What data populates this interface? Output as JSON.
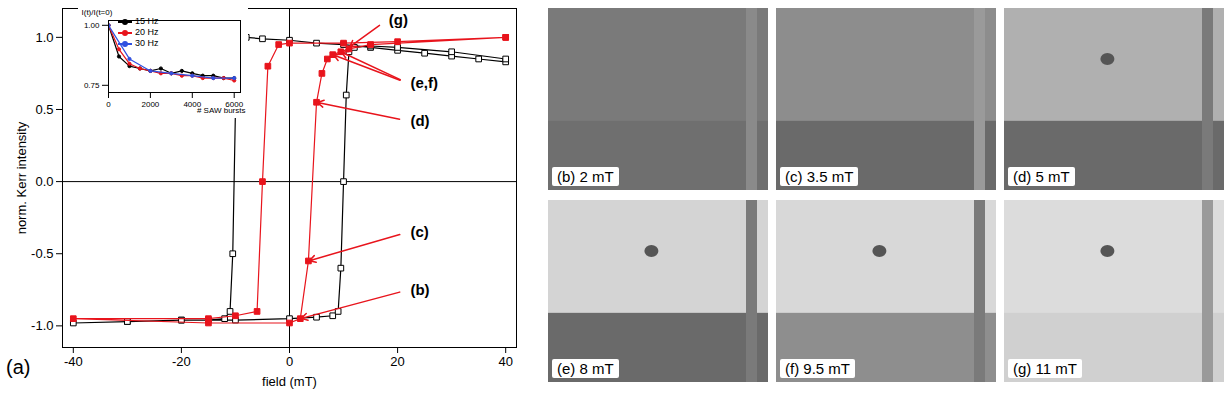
{
  "chart_data": [
    {
      "type": "line",
      "label": "(a)",
      "xlabel": "field (mT)",
      "ylabel": "norm. Kerr intensity",
      "xlim": [
        -42,
        42
      ],
      "ylim": [
        -1.15,
        1.2
      ],
      "xticks": [
        -40,
        -20,
        0,
        20,
        40
      ],
      "yticks": [
        {
          "value": -1,
          "label": "-1.0"
        },
        {
          "value": -0.5,
          "label": "-0.5"
        },
        {
          "value": 0,
          "label": "0.0"
        },
        {
          "value": 0.5,
          "label": "0.5"
        },
        {
          "value": 1,
          "label": "1.0"
        }
      ],
      "hlines": [
        0
      ],
      "vlines": [
        0
      ],
      "series": [
        {
          "color": "#000000",
          "marker": "open_square",
          "x": [
            40,
            35,
            30,
            25,
            20,
            15,
            10,
            5,
            0,
            -5,
            -8,
            -9,
            -9.5,
            -10,
            -10.5,
            -11,
            -12,
            -15,
            -20,
            -30,
            -40,
            -30,
            -20,
            -10,
            0,
            5,
            8,
            9,
            9.5,
            10,
            10.5,
            11,
            12,
            15,
            20,
            30,
            40
          ],
          "values": [
            0.83,
            0.85,
            0.87,
            0.89,
            0.91,
            0.93,
            0.95,
            0.96,
            0.98,
            0.99,
            1.0,
            0.98,
            0.9,
            0.5,
            -0.5,
            -0.9,
            -0.95,
            -0.96,
            -0.96,
            -0.97,
            -0.98,
            -0.97,
            -0.96,
            -0.96,
            -0.95,
            -0.94,
            -0.93,
            -0.9,
            -0.6,
            0.0,
            0.6,
            0.9,
            0.93,
            0.94,
            0.93,
            0.9,
            0.85
          ]
        },
        {
          "color": "#e8141c",
          "marker": "square",
          "x": [
            40,
            20,
            10,
            0,
            -2,
            -4,
            -5,
            -6,
            -10,
            -15,
            -40,
            -15,
            0,
            2,
            3.5,
            5,
            6,
            7,
            8,
            9.5,
            11,
            15,
            40
          ],
          "values": [
            1.0,
            0.97,
            0.96,
            0.96,
            0.95,
            0.8,
            0.0,
            -0.9,
            -0.93,
            -0.95,
            -0.95,
            -0.98,
            -0.98,
            -0.95,
            -0.55,
            0.55,
            0.75,
            0.85,
            0.88,
            0.9,
            0.92,
            0.95,
            1.0
          ]
        }
      ],
      "annotations": [
        {
          "text": "(g)",
          "x": 18,
          "y": 1.12,
          "targets": [
            [
              11,
              0.93
            ]
          ]
        },
        {
          "text": "(e,f)",
          "x": 22,
          "y": 0.68,
          "targets": [
            [
              8,
              0.88
            ],
            [
              9.5,
              0.9
            ]
          ]
        },
        {
          "text": "(d)",
          "x": 22,
          "y": 0.42,
          "targets": [
            [
              5,
              0.55
            ]
          ]
        },
        {
          "text": "(c)",
          "x": 22,
          "y": -0.35,
          "targets": [
            [
              3.5,
              -0.55
            ]
          ]
        },
        {
          "text": "(b)",
          "x": 22,
          "y": -0.75,
          "targets": [
            [
              2,
              -0.95
            ]
          ]
        }
      ]
    },
    {
      "type": "line",
      "ylabel": "I(t)/I(t=0)",
      "xlabel": "# SAW bursts",
      "xlim": [
        0,
        6300
      ],
      "ylim": [
        0.72,
        1.02
      ],
      "xticks": [
        0,
        2000,
        4000,
        6000
      ],
      "yticks": [
        {
          "value": 0.75,
          "label": "0.75"
        },
        {
          "value": 1.0,
          "label": "1.00"
        }
      ],
      "series": [
        {
          "name": "15 Hz",
          "color": "#000000",
          "marker": "circle",
          "x": [
            0,
            500,
            1000,
            1500,
            2000,
            2500,
            3000,
            3500,
            4000,
            4500,
            5000,
            5500,
            6000
          ],
          "values": [
            1.0,
            0.87,
            0.83,
            0.82,
            0.81,
            0.82,
            0.8,
            0.81,
            0.8,
            0.79,
            0.79,
            0.78,
            0.78
          ]
        },
        {
          "name": "20 Hz",
          "color": "#e8141c",
          "marker": "circle",
          "x": [
            0,
            500,
            1000,
            1500,
            2000,
            2500,
            3000,
            3500,
            4000,
            4500,
            5000,
            5500,
            6000
          ],
          "values": [
            1.0,
            0.9,
            0.84,
            0.82,
            0.81,
            0.8,
            0.8,
            0.79,
            0.79,
            0.78,
            0.78,
            0.78,
            0.77
          ]
        },
        {
          "name": "30 Hz",
          "color": "#3050e0",
          "marker": "circle",
          "x": [
            0,
            1000,
            2000,
            3000,
            4000,
            5000,
            6000
          ],
          "values": [
            1.0,
            0.86,
            0.81,
            0.8,
            0.79,
            0.78,
            0.78
          ]
        }
      ]
    }
  ],
  "panels": [
    {
      "label": "(b) 2 mT"
    },
    {
      "label": "(c) 3.5 mT"
    },
    {
      "label": "(d) 5 mT"
    },
    {
      "label": "(e) 8 mT"
    },
    {
      "label": "(f) 9.5 mT"
    },
    {
      "label": "(g) 11 mT"
    }
  ]
}
